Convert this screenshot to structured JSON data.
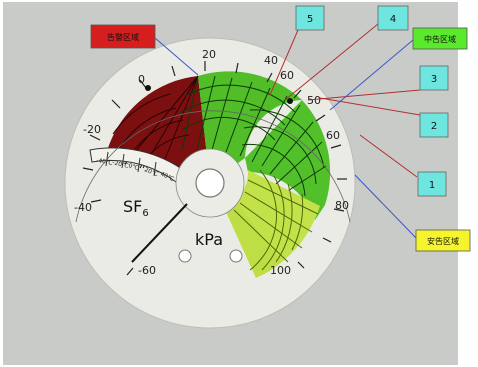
{
  "labels": {
    "red_zone": "告警区域",
    "green_zone": "中告区域",
    "yellow_zone": "安告区域"
  },
  "callouts": [
    "5",
    "4",
    "3",
    "2",
    "1"
  ],
  "dial": {
    "units": "kPa",
    "gas": "SF",
    "gas_subscript": "6",
    "scale_labels": [
      "-60",
      "-40",
      "-20",
      "0",
      "20",
      "40",
      "60",
      "80",
      "100"
    ],
    "temperature_labels": [
      "-40℃",
      "-20℃",
      "0℃",
      "20℃",
      "40℃"
    ],
    "sector_50_label": "50",
    "sector_60_label": "60"
  },
  "colors": {
    "background_wall": "#c9ccc9",
    "dial_face": "#ecece6",
    "red_zone": "#7a1010",
    "green_zone": "#4fbf26",
    "yellow_zone": "#c7e34a",
    "label_red_bg": "#d41e1e",
    "label_green_bg": "#59e82b",
    "label_yellow_bg": "#f5f52a",
    "callout_bg": "#6ae4de"
  }
}
